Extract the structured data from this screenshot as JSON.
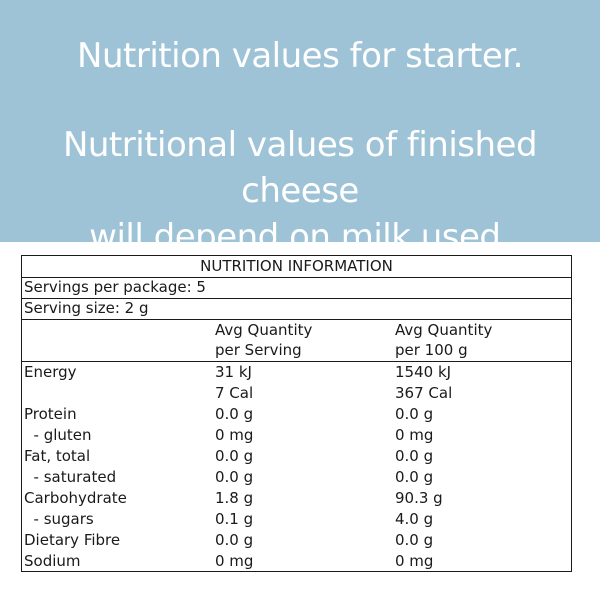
{
  "banner": {
    "line1": "Nutrition values for starter.",
    "line2a": "Nutritional values of finished cheese",
    "line2b": "will depend on milk used."
  },
  "panel": {
    "title": "NUTRITION INFORMATION",
    "servings_per_package": "Servings per package: 5",
    "serving_size": "Serving size: 2 g",
    "col1_header_a": "Avg Quantity",
    "col1_header_b": "per Serving",
    "col2_header_a": "Avg Quantity",
    "col2_header_b": "per 100 g",
    "rows": [
      {
        "label": "Energy",
        "serving": "31 kJ",
        "per100": "1540 kJ"
      },
      {
        "label": "",
        "serving": "7 Cal",
        "per100": "367 Cal"
      },
      {
        "label": "Protein",
        "serving": "0.0 g",
        "per100": "0.0 g"
      },
      {
        "label": "  - gluten",
        "serving": "0 mg",
        "per100": "0 mg"
      },
      {
        "label": "Fat, total",
        "serving": "0.0 g",
        "per100": "0.0 g"
      },
      {
        "label": "  - saturated",
        "serving": "0.0 g",
        "per100": "0.0 g"
      },
      {
        "label": "Carbohydrate",
        "serving": "1.8 g",
        "per100": "90.3 g"
      },
      {
        "label": "  - sugars",
        "serving": "0.1 g",
        "per100": "4.0 g"
      },
      {
        "label": "Dietary Fibre",
        "serving": "0.0 g",
        "per100": "0.0 g"
      },
      {
        "label": "Sodium",
        "serving": "0 mg",
        "per100": "0 mg"
      }
    ]
  }
}
